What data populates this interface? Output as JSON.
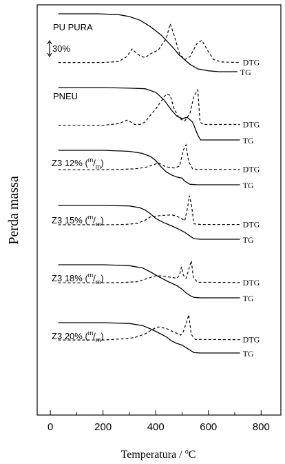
{
  "chart_data": {
    "type": "line",
    "xlabel_prefix": "Temperatura / ",
    "xlabel_unit": "C",
    "xlabel_degree": "o",
    "ylabel": "Perda massa",
    "xlim": [
      -50,
      875
    ],
    "xticks": [
      0,
      200,
      400,
      600,
      800
    ],
    "scale_bar_label": "30%",
    "curve_labels": {
      "tg": "TG",
      "dtg": "DTG"
    },
    "panels": [
      {
        "label": "PU PURA",
        "tg": [
          [
            30,
            100
          ],
          [
            180,
            100
          ],
          [
            260,
            99
          ],
          [
            300,
            97
          ],
          [
            340,
            93
          ],
          [
            380,
            86
          ],
          [
            420,
            77
          ],
          [
            460,
            65
          ],
          [
            490,
            55
          ],
          [
            510,
            50
          ],
          [
            530,
            45
          ],
          [
            560,
            40
          ],
          [
            600,
            38
          ],
          [
            640,
            37
          ],
          [
            710,
            37
          ]
        ],
        "dtg": [
          [
            30,
            2
          ],
          [
            200,
            2
          ],
          [
            260,
            4
          ],
          [
            290,
            14
          ],
          [
            310,
            30
          ],
          [
            325,
            22
          ],
          [
            340,
            16
          ],
          [
            360,
            12
          ],
          [
            380,
            20
          ],
          [
            410,
            28
          ],
          [
            440,
            52
          ],
          [
            455,
            82
          ],
          [
            470,
            58
          ],
          [
            490,
            20
          ],
          [
            510,
            8
          ],
          [
            530,
            14
          ],
          [
            555,
            40
          ],
          [
            575,
            48
          ],
          [
            600,
            24
          ],
          [
            620,
            8
          ],
          [
            650,
            3
          ],
          [
            720,
            2
          ]
        ]
      },
      {
        "label": "PNEU",
        "tg": [
          [
            30,
            100
          ],
          [
            200,
            100
          ],
          [
            300,
            99
          ],
          [
            360,
            98
          ],
          [
            400,
            92
          ],
          [
            430,
            80
          ],
          [
            460,
            62
          ],
          [
            480,
            52
          ],
          [
            500,
            48
          ],
          [
            520,
            50
          ],
          [
            540,
            42
          ],
          [
            560,
            20
          ],
          [
            570,
            12
          ],
          [
            580,
            12
          ],
          [
            720,
            12
          ]
        ],
        "dtg": [
          [
            30,
            2
          ],
          [
            200,
            2
          ],
          [
            260,
            6
          ],
          [
            290,
            14
          ],
          [
            305,
            10
          ],
          [
            320,
            4
          ],
          [
            340,
            4
          ],
          [
            360,
            10
          ],
          [
            375,
            22
          ],
          [
            400,
            40
          ],
          [
            420,
            58
          ],
          [
            440,
            75
          ],
          [
            455,
            72
          ],
          [
            470,
            40
          ],
          [
            490,
            18
          ],
          [
            510,
            12
          ],
          [
            530,
            30
          ],
          [
            545,
            70
          ],
          [
            560,
            85
          ],
          [
            568,
            10
          ],
          [
            580,
            4
          ],
          [
            720,
            4
          ]
        ]
      },
      {
        "label": "Z3 12% (",
        "label_sup": "m",
        "label_slash": "/",
        "label_sub": "m",
        "label_close": ")",
        "tg": [
          [
            30,
            100
          ],
          [
            200,
            100
          ],
          [
            300,
            98
          ],
          [
            350,
            94
          ],
          [
            380,
            88
          ],
          [
            400,
            80
          ],
          [
            420,
            68
          ],
          [
            440,
            58
          ],
          [
            460,
            52
          ],
          [
            480,
            48
          ],
          [
            500,
            46
          ],
          [
            510,
            40
          ],
          [
            530,
            34
          ],
          [
            560,
            33
          ],
          [
            720,
            33
          ]
        ],
        "dtg": [
          [
            30,
            2
          ],
          [
            200,
            2
          ],
          [
            260,
            3
          ],
          [
            320,
            5
          ],
          [
            360,
            10
          ],
          [
            390,
            18
          ],
          [
            410,
            26
          ],
          [
            425,
            18
          ],
          [
            440,
            12
          ],
          [
            470,
            8
          ],
          [
            490,
            14
          ],
          [
            505,
            70
          ],
          [
            515,
            88
          ],
          [
            525,
            30
          ],
          [
            540,
            5
          ],
          [
            560,
            3
          ],
          [
            720,
            3
          ]
        ]
      },
      {
        "label": "Z3 15% (",
        "label_sup": "m",
        "label_slash": "/",
        "label_sub": "m",
        "label_close": ")",
        "tg": [
          [
            30,
            100
          ],
          [
            200,
            100
          ],
          [
            300,
            99
          ],
          [
            340,
            95
          ],
          [
            360,
            90
          ],
          [
            380,
            82
          ],
          [
            400,
            72
          ],
          [
            430,
            63
          ],
          [
            460,
            56
          ],
          [
            490,
            48
          ],
          [
            510,
            42
          ],
          [
            530,
            34
          ],
          [
            545,
            28
          ],
          [
            570,
            27
          ],
          [
            720,
            27
          ]
        ],
        "dtg": [
          [
            30,
            2
          ],
          [
            200,
            2
          ],
          [
            280,
            3
          ],
          [
            330,
            6
          ],
          [
            360,
            16
          ],
          [
            380,
            26
          ],
          [
            420,
            30
          ],
          [
            460,
            32
          ],
          [
            480,
            28
          ],
          [
            500,
            20
          ],
          [
            510,
            14
          ],
          [
            520,
            50
          ],
          [
            528,
            90
          ],
          [
            536,
            60
          ],
          [
            545,
            5
          ],
          [
            570,
            3
          ],
          [
            720,
            3
          ]
        ]
      },
      {
        "label": "Z3 18% (",
        "label_sup": "m",
        "label_slash": "/",
        "label_sub": "m",
        "label_close": ")",
        "tg": [
          [
            30,
            100
          ],
          [
            200,
            100
          ],
          [
            300,
            98
          ],
          [
            350,
            93
          ],
          [
            380,
            84
          ],
          [
            410,
            74
          ],
          [
            450,
            62
          ],
          [
            480,
            54
          ],
          [
            500,
            46
          ],
          [
            515,
            38
          ],
          [
            530,
            32
          ],
          [
            545,
            28
          ],
          [
            570,
            27
          ],
          [
            720,
            27
          ]
        ],
        "dtg": [
          [
            30,
            2
          ],
          [
            200,
            2
          ],
          [
            270,
            3
          ],
          [
            330,
            6
          ],
          [
            370,
            18
          ],
          [
            400,
            28
          ],
          [
            430,
            26
          ],
          [
            460,
            22
          ],
          [
            480,
            18
          ],
          [
            490,
            30
          ],
          [
            498,
            60
          ],
          [
            505,
            30
          ],
          [
            515,
            18
          ],
          [
            525,
            50
          ],
          [
            535,
            82
          ],
          [
            543,
            20
          ],
          [
            560,
            4
          ],
          [
            720,
            3
          ]
        ]
      },
      {
        "label": "Z3 20% (",
        "label_sup": "m",
        "label_slash": "/",
        "label_sub": "m",
        "label_close": ")",
        "tg": [
          [
            30,
            100
          ],
          [
            200,
            100
          ],
          [
            300,
            98
          ],
          [
            350,
            93
          ],
          [
            380,
            85
          ],
          [
            410,
            76
          ],
          [
            440,
            66
          ],
          [
            460,
            56
          ],
          [
            480,
            50
          ],
          [
            500,
            46
          ],
          [
            515,
            40
          ],
          [
            530,
            34
          ],
          [
            545,
            28
          ],
          [
            570,
            27
          ],
          [
            720,
            27
          ]
        ],
        "dtg": [
          [
            30,
            2
          ],
          [
            200,
            2
          ],
          [
            280,
            6
          ],
          [
            320,
            10
          ],
          [
            360,
            22
          ],
          [
            390,
            38
          ],
          [
            410,
            45
          ],
          [
            440,
            40
          ],
          [
            460,
            32
          ],
          [
            480,
            24
          ],
          [
            495,
            18
          ],
          [
            505,
            30
          ],
          [
            515,
            55
          ],
          [
            525,
            85
          ],
          [
            535,
            20
          ],
          [
            550,
            4
          ],
          [
            720,
            3
          ]
        ]
      }
    ]
  }
}
